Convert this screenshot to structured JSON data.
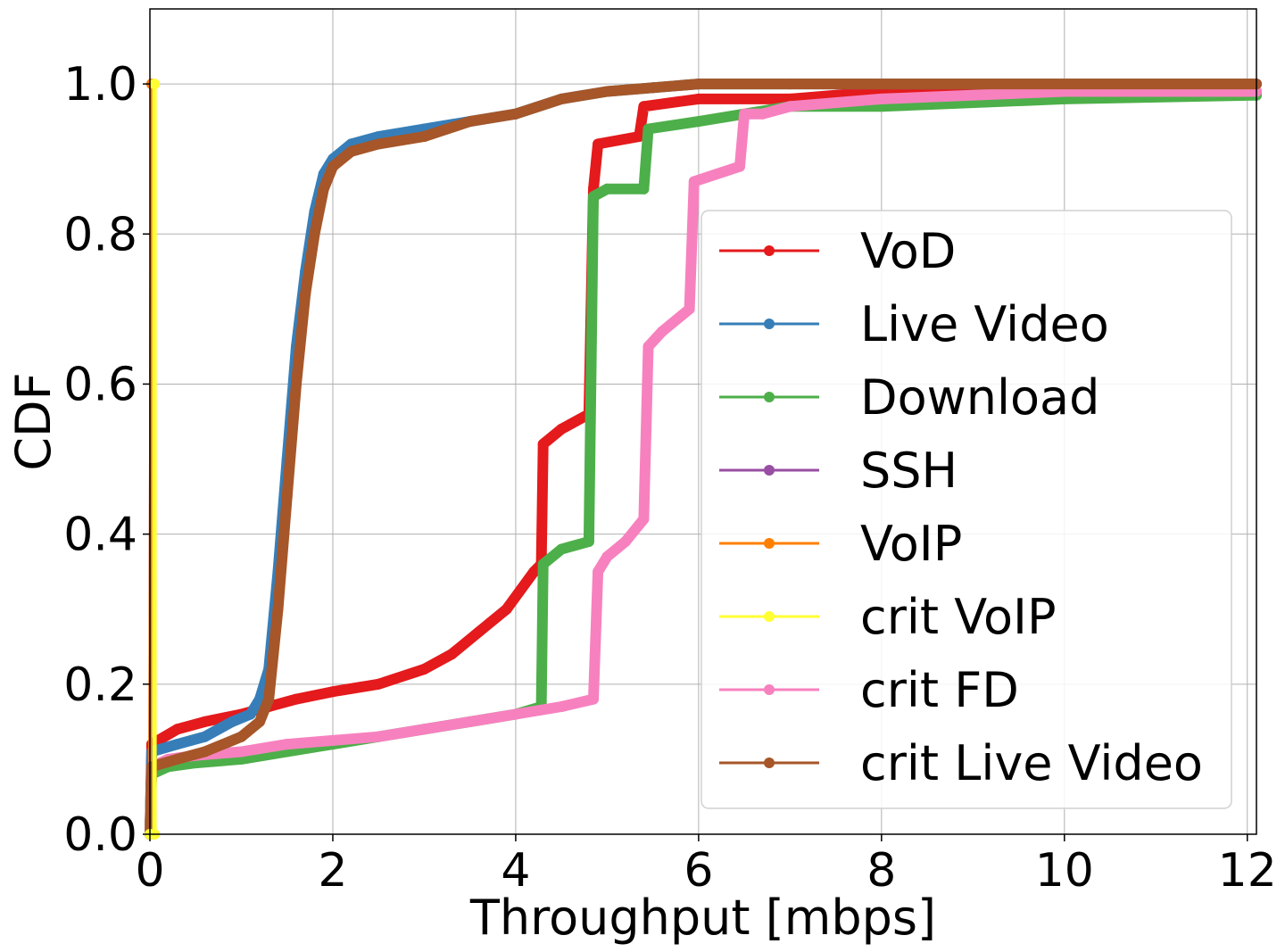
{
  "chart_data": {
    "type": "line",
    "title": "",
    "xlabel": "Throughput [mbps]",
    "ylabel": "CDF",
    "xlim": [
      0,
      12.1
    ],
    "ylim": [
      0,
      1.1
    ],
    "xticks": [
      0,
      2,
      4,
      6,
      8,
      10,
      12
    ],
    "xtick_labels": [
      "0",
      "2",
      "4",
      "6",
      "8",
      "10",
      "12"
    ],
    "yticks": [
      0.0,
      0.2,
      0.4,
      0.6,
      0.8,
      1.0
    ],
    "ytick_labels": [
      "0.0",
      "0.2",
      "0.4",
      "0.6",
      "0.8",
      "1.0"
    ],
    "grid": true,
    "legend_position": "lower-right",
    "series": [
      {
        "name": "VoD",
        "color": "#e41a1c",
        "x": [
          0.0,
          0.02,
          0.3,
          0.6,
          1.0,
          1.3,
          1.6,
          2.0,
          2.5,
          3.0,
          3.3,
          3.6,
          3.9,
          4.2,
          4.28,
          4.3,
          4.5,
          4.8,
          4.85,
          4.9,
          5.35,
          5.4,
          6.0,
          7.0,
          8.0,
          10.0,
          12.1
        ],
        "y": [
          0.0,
          0.12,
          0.14,
          0.15,
          0.16,
          0.17,
          0.18,
          0.19,
          0.2,
          0.22,
          0.24,
          0.27,
          0.3,
          0.35,
          0.36,
          0.52,
          0.54,
          0.56,
          0.86,
          0.92,
          0.93,
          0.97,
          0.98,
          0.98,
          0.99,
          0.99,
          0.99
        ]
      },
      {
        "name": "Live Video",
        "color": "#377eb8",
        "x": [
          0.0,
          0.02,
          0.3,
          0.6,
          0.9,
          1.1,
          1.2,
          1.3,
          1.4,
          1.5,
          1.6,
          1.7,
          1.8,
          1.9,
          2.0,
          2.2,
          2.5,
          3.0,
          3.5,
          4.0,
          4.5,
          5.0,
          5.5,
          6.0,
          7.0,
          12.1
        ],
        "y": [
          0.0,
          0.11,
          0.12,
          0.13,
          0.15,
          0.16,
          0.18,
          0.22,
          0.35,
          0.5,
          0.65,
          0.75,
          0.83,
          0.88,
          0.9,
          0.92,
          0.93,
          0.94,
          0.95,
          0.96,
          0.98,
          0.99,
          0.995,
          1.0,
          1.0,
          1.0
        ]
      },
      {
        "name": "Download",
        "color": "#4daf4a",
        "x": [
          0.0,
          0.02,
          0.2,
          0.5,
          1.0,
          1.5,
          2.0,
          2.5,
          3.0,
          3.5,
          4.0,
          4.28,
          4.3,
          4.5,
          4.8,
          4.85,
          5.0,
          5.4,
          5.45,
          6.0,
          7.0,
          8.0,
          10.0,
          12.1
        ],
        "y": [
          0.0,
          0.08,
          0.09,
          0.095,
          0.1,
          0.11,
          0.12,
          0.13,
          0.14,
          0.15,
          0.16,
          0.17,
          0.36,
          0.38,
          0.39,
          0.85,
          0.86,
          0.86,
          0.94,
          0.95,
          0.97,
          0.97,
          0.98,
          0.985
        ]
      },
      {
        "name": "SSH",
        "color": "#984ea3",
        "x": [
          0.0,
          0.02
        ],
        "y": [
          0.0,
          1.0
        ]
      },
      {
        "name": "VoIP",
        "color": "#ff7f00",
        "x": [
          0.0,
          0.02
        ],
        "y": [
          0.0,
          1.0
        ]
      },
      {
        "name": "crit VoIP",
        "color": "#ffff33",
        "x": [
          0.0,
          0.05,
          0.05
        ],
        "y": [
          0.0,
          0.0,
          1.0
        ]
      },
      {
        "name": "crit FD",
        "color": "#f781bf",
        "x": [
          0.0,
          0.02,
          0.2,
          0.5,
          1.0,
          1.5,
          2.0,
          2.5,
          3.0,
          3.5,
          4.0,
          4.5,
          4.85,
          4.9,
          5.0,
          5.2,
          5.4,
          5.45,
          5.6,
          5.9,
          5.95,
          6.2,
          6.45,
          6.5,
          6.7,
          7.0,
          8.0,
          10.0,
          12.1
        ],
        "y": [
          0.0,
          0.09,
          0.1,
          0.105,
          0.11,
          0.12,
          0.125,
          0.13,
          0.14,
          0.15,
          0.16,
          0.17,
          0.18,
          0.35,
          0.37,
          0.39,
          0.42,
          0.65,
          0.67,
          0.7,
          0.87,
          0.88,
          0.89,
          0.96,
          0.96,
          0.97,
          0.98,
          0.99,
          0.99
        ]
      },
      {
        "name": "crit Live Video",
        "color": "#a65628",
        "x": [
          0.0,
          0.02,
          0.3,
          0.6,
          1.0,
          1.2,
          1.3,
          1.4,
          1.5,
          1.6,
          1.7,
          1.8,
          1.9,
          2.0,
          2.2,
          2.5,
          3.0,
          3.5,
          4.0,
          4.5,
          5.0,
          5.5,
          6.0,
          7.0,
          9.3,
          12.1
        ],
        "y": [
          0.0,
          0.09,
          0.1,
          0.11,
          0.13,
          0.15,
          0.18,
          0.3,
          0.45,
          0.6,
          0.72,
          0.8,
          0.86,
          0.89,
          0.91,
          0.92,
          0.93,
          0.95,
          0.96,
          0.98,
          0.99,
          0.995,
          1.0,
          1.0,
          1.0,
          1.0
        ]
      }
    ]
  }
}
